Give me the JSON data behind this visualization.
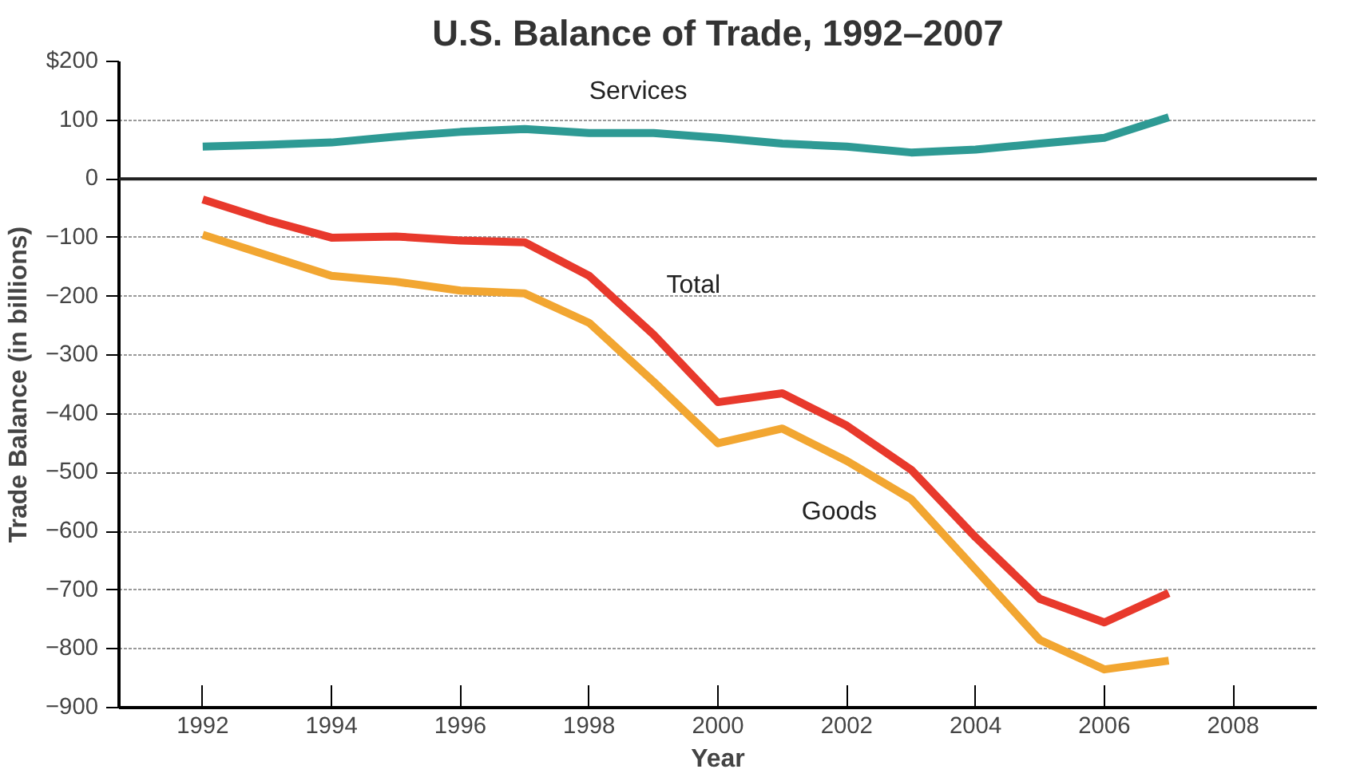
{
  "chart_data": {
    "type": "line",
    "title": "U.S. Balance of Trade, 1992–2007",
    "xlabel": "Year",
    "ylabel": "Trade Balance (in billions)",
    "x": [
      1992,
      1993,
      1994,
      1995,
      1996,
      1997,
      1998,
      1999,
      2000,
      2001,
      2002,
      2003,
      2004,
      2005,
      2006,
      2007
    ],
    "series": [
      {
        "name": "Services",
        "color": "#2e9a94",
        "values": [
          55,
          58,
          62,
          72,
          80,
          85,
          78,
          78,
          70,
          60,
          55,
          45,
          50,
          60,
          70,
          105
        ]
      },
      {
        "name": "Total",
        "color": "#e8392c",
        "values": [
          -35,
          -70,
          -100,
          -98,
          -105,
          -108,
          -165,
          -265,
          -380,
          -365,
          -420,
          -495,
          -610,
          -715,
          -755,
          -705
        ]
      },
      {
        "name": "Goods",
        "color": "#f2a631",
        "values": [
          -95,
          -130,
          -165,
          -175,
          -190,
          -195,
          -245,
          -345,
          -450,
          -425,
          -480,
          -545,
          -665,
          -785,
          -835,
          -820
        ]
      }
    ],
    "xlim": [
      1990.7,
      2009.3
    ],
    "ylim": [
      -900,
      200
    ],
    "xticks": [
      1992,
      1994,
      1996,
      1998,
      2000,
      2002,
      2004,
      2006,
      2008
    ],
    "yticks": [
      {
        "value": 200,
        "label": "$200"
      },
      100,
      0,
      -100,
      -200,
      -300,
      -400,
      -500,
      -600,
      -700,
      -800,
      -900
    ],
    "grid": "y",
    "line_style": "solid",
    "marker": "none",
    "ref_lines": [
      {
        "axis": "y",
        "value": 0,
        "color": "#222222",
        "line_style": "solid"
      }
    ]
  }
}
